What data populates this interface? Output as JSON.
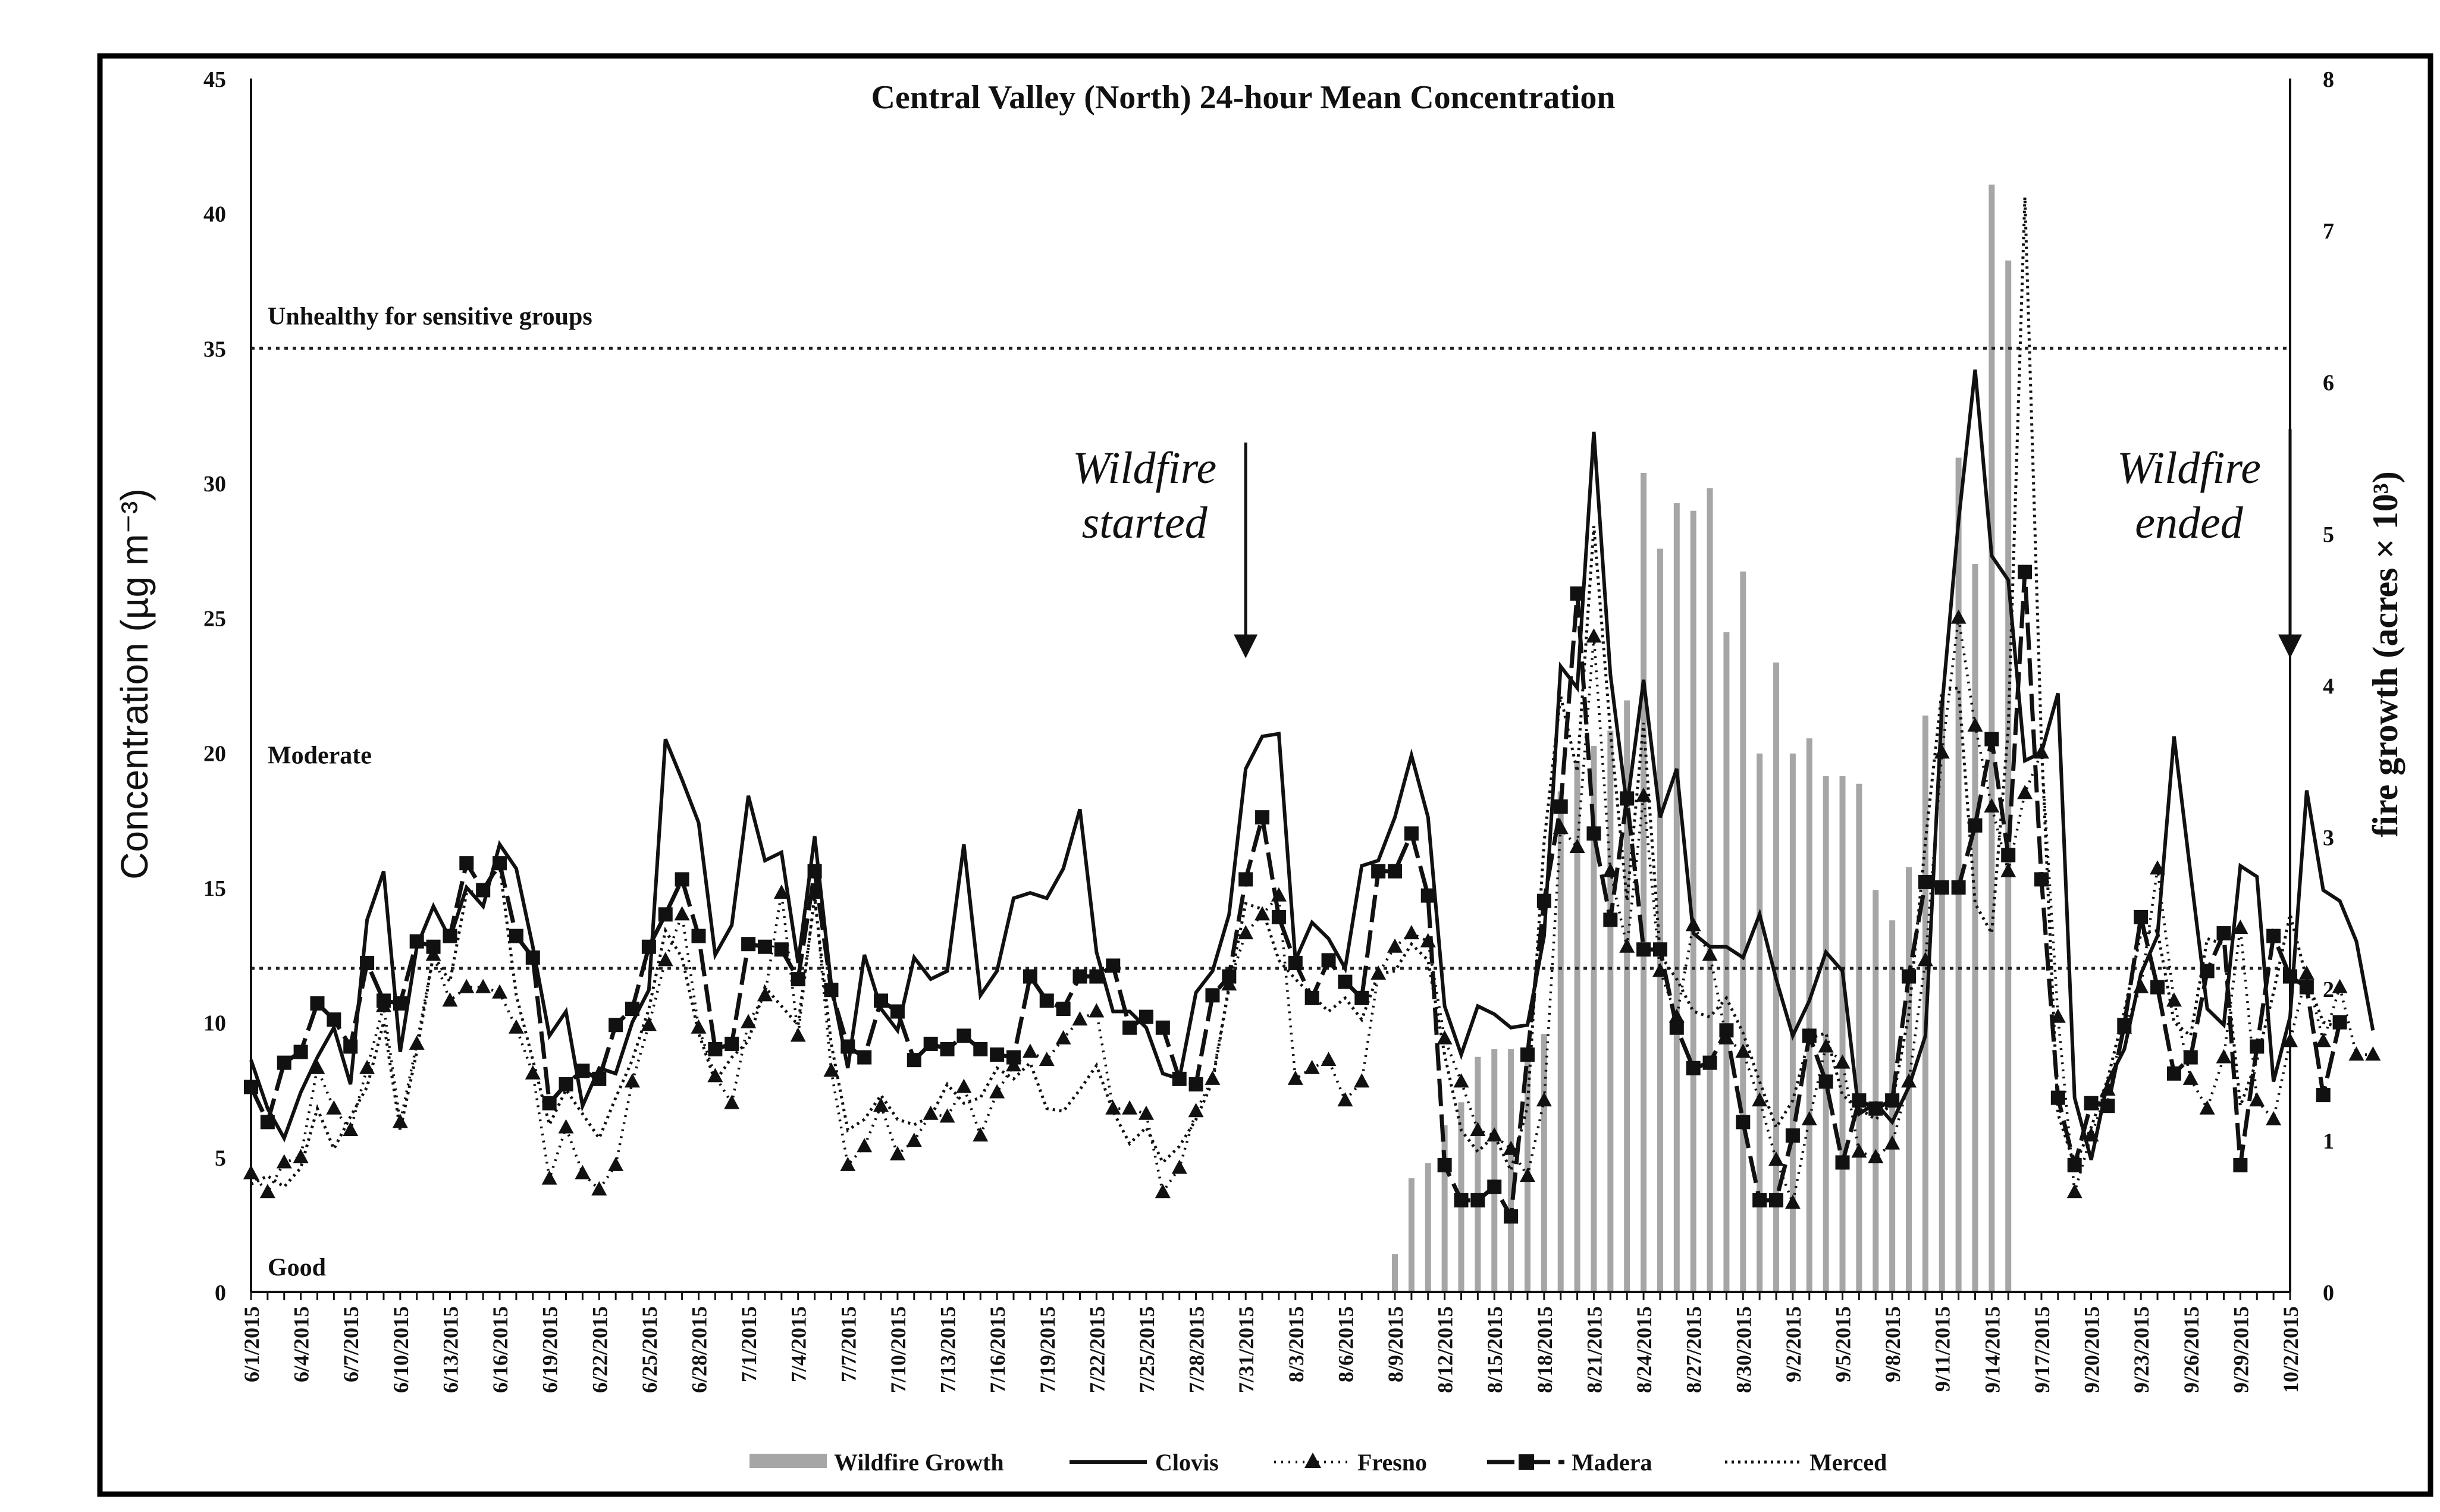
{
  "chart_data": {
    "type": "line",
    "title": "Central Valley (North) 24-hour Mean Concentration",
    "ylabel": "Concentration (µg m⁻³)",
    "y2label": "fire growth (acres × 10³)",
    "ylim": [
      0,
      45
    ],
    "y2lim": [
      0,
      8
    ],
    "yticks": [
      "0",
      "5",
      "10",
      "15",
      "20",
      "25",
      "30",
      "35",
      "40",
      "45"
    ],
    "y2ticks": [
      "0",
      "1",
      "2",
      "3",
      "4",
      "5",
      "6",
      "7",
      "8"
    ],
    "grid": false,
    "legend_position": "bottom",
    "x_start": "6/1/2015",
    "x_end": "10/2/2015",
    "xticks": [
      "6/1/2015",
      "6/4/2015",
      "6/7/2015",
      "6/10/2015",
      "6/13/2015",
      "6/16/2015",
      "6/19/2015",
      "6/22/2015",
      "6/25/2015",
      "6/28/2015",
      "7/1/2015",
      "7/4/2015",
      "7/7/2015",
      "7/10/2015",
      "7/13/2015",
      "7/16/2015",
      "7/19/2015",
      "7/22/2015",
      "7/25/2015",
      "7/28/2015",
      "7/31/2015",
      "8/3/2015",
      "8/6/2015",
      "8/9/2015",
      "8/12/2015",
      "8/15/2015",
      "8/18/2015",
      "8/21/2015",
      "8/24/2015",
      "8/27/2015",
      "8/30/2015",
      "9/2/2015",
      "9/5/2015",
      "9/8/2015",
      "9/11/2015",
      "9/14/2015",
      "9/17/2015",
      "9/20/2015",
      "9/23/2015",
      "9/26/2015",
      "9/29/2015",
      "10/2/2015"
    ],
    "reference_lines": [
      {
        "value": 35,
        "label": "Unhealthy for sensitive groups"
      },
      {
        "value": 12,
        "label": "Moderate"
      }
    ],
    "band_labels": [
      {
        "value": 35,
        "label": "Unhealthy for sensitive groups"
      },
      {
        "value": 20,
        "label": "Moderate"
      },
      {
        "value": 1,
        "label": "Good"
      }
    ],
    "annotations": [
      {
        "text_line1": "Wildfire",
        "text_line2": "started",
        "date_index": 60,
        "arrow_from": 31.5,
        "arrow_to": 23.5
      },
      {
        "text_line1": "Wildfire",
        "text_line2": "ended",
        "date_index": 123,
        "arrow_from": 32,
        "arrow_to": 23.5
      }
    ],
    "series": [
      {
        "name": "Wildfire Growth",
        "axis": "secondary",
        "style": "bar",
        "start_index": 69,
        "values": [
          0.25,
          0.75,
          0.85,
          1.1,
          1.25,
          1.55,
          1.6,
          1.6,
          1.6,
          1.7,
          3.3,
          3.5,
          3.6,
          3.7,
          3.9,
          5.4,
          4.9,
          5.2,
          5.15,
          5.3,
          4.35,
          4.75,
          3.55,
          4.15,
          3.55,
          3.65,
          3.4,
          3.4,
          3.35,
          2.65,
          2.45,
          2.8,
          3.8,
          3.9,
          5.5,
          4.8,
          7.3,
          6.8
        ]
      },
      {
        "name": "Clovis",
        "axis": "primary",
        "style": "solid",
        "values": [
          8.6,
          6.8,
          5.7,
          7.4,
          8.7,
          9.8,
          7.7,
          13.8,
          15.6,
          8.9,
          12.8,
          14.3,
          13.1,
          15.0,
          14.3,
          16.6,
          15.7,
          12.8,
          9.5,
          10.4,
          6.9,
          8.3,
          8.1,
          10.0,
          11.2,
          20.5,
          19.0,
          17.4,
          12.5,
          13.6,
          18.4,
          16.0,
          16.3,
          12.2,
          16.9,
          11.4,
          8.3,
          12.5,
          10.5,
          9.7,
          12.4,
          11.6,
          11.9,
          16.6,
          11.0,
          11.9,
          14.6,
          14.8,
          14.6,
          15.7,
          17.9,
          12.6,
          10.4,
          10.4,
          9.8,
          8.1,
          7.9,
          11.1,
          11.9,
          14.0,
          19.4,
          20.6,
          20.7,
          12.3,
          13.7,
          13.1,
          12.0,
          15.8,
          16.0,
          17.6,
          19.9,
          17.6,
          10.6,
          8.8,
          10.6,
          10.3,
          9.8,
          9.9,
          13.2,
          23.2,
          22.4,
          31.9,
          22.9,
          18.0,
          22.7,
          17.6,
          19.4,
          13.3,
          12.8,
          12.8,
          12.4,
          14.0,
          11.6,
          9.5,
          10.8,
          12.6,
          11.9,
          6.6,
          7.0,
          6.3,
          7.6,
          9.5,
          21.7,
          28.6,
          34.2,
          27.3,
          26.4,
          19.7,
          20.0,
          22.2,
          7.2,
          4.9,
          7.8,
          9.0,
          11.8,
          13.2,
          20.6,
          15.5,
          10.5,
          9.9,
          15.8,
          15.4,
          7.8,
          10.2,
          18.6,
          14.9,
          14.5,
          13.0,
          9.7
        ]
      },
      {
        "name": "Fresno",
        "axis": "primary",
        "style": "dotted-triangle",
        "values": [
          4.4,
          3.7,
          4.8,
          5.0,
          8.3,
          6.8,
          6.0,
          8.3,
          10.6,
          6.3,
          9.2,
          12.5,
          10.8,
          11.3,
          11.3,
          11.1,
          9.8,
          8.1,
          4.2,
          6.1,
          4.4,
          3.8,
          4.7,
          7.8,
          9.9,
          12.3,
          14.0,
          9.8,
          8.0,
          7.0,
          10.0,
          11.0,
          14.8,
          9.5,
          14.8,
          8.2,
          4.7,
          5.4,
          6.9,
          5.1,
          5.6,
          6.6,
          6.5,
          7.6,
          5.8,
          7.4,
          8.4,
          8.9,
          8.6,
          9.4,
          10.1,
          10.4,
          6.8,
          6.8,
          6.6,
          3.7,
          4.6,
          6.7,
          7.9,
          11.4,
          13.3,
          14.0,
          14.7,
          7.9,
          8.3,
          8.6,
          7.1,
          7.8,
          11.8,
          12.8,
          13.3,
          13.0,
          9.4,
          7.8,
          6.0,
          5.8,
          5.3,
          4.3,
          7.1,
          17.2,
          16.5,
          24.3,
          15.6,
          12.8,
          18.4,
          11.9,
          10.2,
          13.6,
          12.5,
          9.4,
          8.9,
          7.1,
          4.9,
          3.3,
          6.4,
          9.1,
          8.5,
          5.2,
          5.0,
          5.5,
          7.8,
          12.3,
          20.0,
          25.0,
          21.0,
          18.0,
          15.6,
          18.5,
          20.0,
          10.2,
          3.7,
          5.8,
          7.5,
          9.8,
          11.3,
          15.7,
          10.8,
          7.9,
          6.8,
          8.7,
          13.5,
          7.1,
          6.4,
          9.3,
          11.8,
          9.3,
          11.3,
          8.8,
          8.8
        ]
      },
      {
        "name": "Madera",
        "axis": "primary",
        "style": "dashed-square",
        "values": [
          7.6,
          6.3,
          8.5,
          8.9,
          10.7,
          10.1,
          9.1,
          12.2,
          10.8,
          10.7,
          13.0,
          12.8,
          13.2,
          15.9,
          14.9,
          15.9,
          13.2,
          12.4,
          7.0,
          7.7,
          8.2,
          7.9,
          9.9,
          10.5,
          12.8,
          14.0,
          15.3,
          13.2,
          9.0,
          9.2,
          12.9,
          12.8,
          12.7,
          11.6,
          15.6,
          11.2,
          9.1,
          8.7,
          10.8,
          10.4,
          8.6,
          9.2,
          9.0,
          9.5,
          9.0,
          8.8,
          8.7,
          11.7,
          10.8,
          10.5,
          11.7,
          11.7,
          12.1,
          9.8,
          10.2,
          9.8,
          7.9,
          7.7,
          11.0,
          11.7,
          15.3,
          17.6,
          13.9,
          12.2,
          10.9,
          12.3,
          11.5,
          10.9,
          15.6,
          15.6,
          17.0,
          14.7,
          4.7,
          3.4,
          3.4,
          3.9,
          2.8,
          8.8,
          14.5,
          18.0,
          25.9,
          17.0,
          13.8,
          18.3,
          12.7,
          12.7,
          9.8,
          8.3,
          8.5,
          9.7,
          6.3,
          3.4,
          3.4,
          5.8,
          9.5,
          7.8,
          4.8,
          7.1,
          6.8,
          7.1,
          11.7,
          15.2,
          15.0,
          15.0,
          17.3,
          20.5,
          16.2,
          26.7,
          15.3,
          7.2,
          4.7,
          7.0,
          6.9,
          9.9,
          13.9,
          11.3,
          8.1,
          8.7,
          11.9,
          13.3,
          4.7,
          9.1,
          13.2,
          11.7,
          11.3,
          7.3,
          10.0
        ]
      },
      {
        "name": "Merced",
        "axis": "primary",
        "style": "dotted",
        "values": [
          4.0,
          4.3,
          3.9,
          4.6,
          6.8,
          5.3,
          6.5,
          7.6,
          10.0,
          6.0,
          8.9,
          12.5,
          11.5,
          14.8,
          14.9,
          15.8,
          11.0,
          8.6,
          6.2,
          7.5,
          6.6,
          5.7,
          7.2,
          8.6,
          10.5,
          13.4,
          12.4,
          9.6,
          7.8,
          8.7,
          9.3,
          11.3,
          10.6,
          9.9,
          14.6,
          9.2,
          6.0,
          6.4,
          7.3,
          6.4,
          6.2,
          6.5,
          7.7,
          7.0,
          7.2,
          8.3,
          7.9,
          8.5,
          6.8,
          6.7,
          7.5,
          8.4,
          6.7,
          5.5,
          6.1,
          4.8,
          5.4,
          6.4,
          7.8,
          11.3,
          14.4,
          14.2,
          12.3,
          11.6,
          11.0,
          10.4,
          10.9,
          10.1,
          11.8,
          11.9,
          12.9,
          12.3,
          8.8,
          6.0,
          5.2,
          5.8,
          4.5,
          6.9,
          16.7,
          22.1,
          19.3,
          28.4,
          20.8,
          14.5,
          21.1,
          12.5,
          11.6,
          10.4,
          10.2,
          10.9,
          9.6,
          7.8,
          6.1,
          7.1,
          9.4,
          9.6,
          7.3,
          6.8,
          6.4,
          7.0,
          10.3,
          16.7,
          22.3,
          22.4,
          14.4,
          13.3,
          20.9,
          40.6,
          20.3,
          6.6,
          4.7,
          6.1,
          7.9,
          10.4,
          13.3,
          13.4,
          10.0,
          9.5,
          13.1,
          12.9,
          6.9,
          8.6,
          11.1,
          14.0,
          11.6,
          10.0,
          9.8
        ]
      }
    ]
  },
  "legend": {
    "items": [
      "Wildfire Growth",
      "Clovis",
      "Fresno",
      "Madera",
      "Merced"
    ]
  }
}
